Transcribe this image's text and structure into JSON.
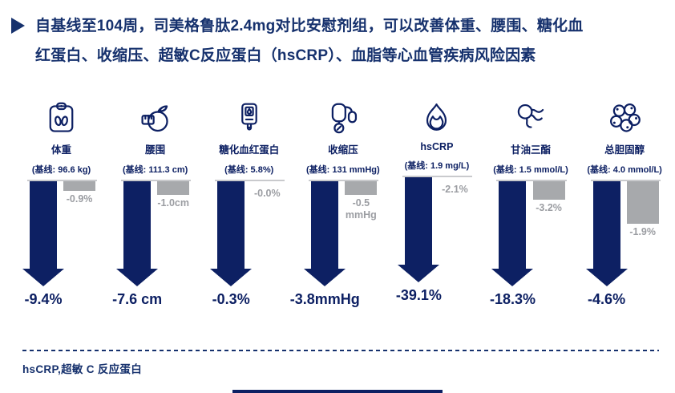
{
  "colors": {
    "navy": "#0d2063",
    "header_navy": "#16316d",
    "gray_bar": "#a7a9ac",
    "gray_text": "#9b9da2",
    "baseline_line": "#c9cacd"
  },
  "header": {
    "line1": "自基线至104周，司美格鲁肽2.4mg对比安慰剂组，可以改善体重、腰围、糖化血",
    "line2": "红蛋白、收缩压、超敏C反应蛋白（hsCRP）、血脂等心血管疾病风险因素"
  },
  "chart_data": {
    "type": "bar",
    "orientation": "downward-from-baseline",
    "legend_position": "none",
    "grid": false,
    "series": [
      {
        "name": "司美格鲁肽2.4mg",
        "color": "#0d2063",
        "style": "arrow"
      },
      {
        "name": "安慰剂组",
        "color": "#a7a9ac",
        "style": "bar"
      }
    ],
    "columns": [
      {
        "label": "体重",
        "icon": "weight-scale",
        "baseline_label": "(基线: 96.6 kg)",
        "semaglutide_change": "-9.4%",
        "semaglutide_value": -9.4,
        "placebo_change": "-0.9%",
        "placebo_value": -0.9
      },
      {
        "label": "腰围",
        "icon": "waist-tape",
        "baseline_label": "(基线: 111.3 cm)",
        "semaglutide_change": "-7.6 cm",
        "semaglutide_value": -7.6,
        "placebo_change": "-1.0cm",
        "placebo_value": -1.0
      },
      {
        "label": "糖化血红蛋白",
        "icon": "glucose-meter",
        "baseline_label": "(基线: 5.8%)",
        "semaglutide_change": "-0.3%",
        "semaglutide_value": -0.3,
        "placebo_change": "-0.0%",
        "placebo_value": 0.0
      },
      {
        "label": "收缩压",
        "icon": "bp-monitor",
        "baseline_label": "(基线: 131 mmHg)",
        "semaglutide_change": "-3.8mmHg",
        "semaglutide_value": -3.8,
        "placebo_change": "-0.5\nmmHg",
        "placebo_value": -0.5
      },
      {
        "label": "hsCRP",
        "icon": "flame",
        "baseline_label": "(基线: 1.9 mg/L)",
        "semaglutide_change": "-39.1%",
        "semaglutide_value": -39.1,
        "placebo_change": "-2.1%",
        "placebo_value": -2.1
      },
      {
        "label": "甘油三酯",
        "icon": "triglyceride",
        "baseline_label": "(基线: 1.5 mmol/L)",
        "semaglutide_change": "-18.3%",
        "semaglutide_value": -18.3,
        "placebo_change": "-3.2%",
        "placebo_value": -3.2
      },
      {
        "label": "总胆固醇",
        "icon": "cholesterol",
        "baseline_label": "(基线: 4.0 mmol/L)",
        "semaglutide_change": "-4.6%",
        "semaglutide_value": -4.6,
        "placebo_change": "-1.9%",
        "placebo_value": -1.9
      }
    ]
  },
  "footnote": "hsCRP,超敏 C 反应蛋白"
}
